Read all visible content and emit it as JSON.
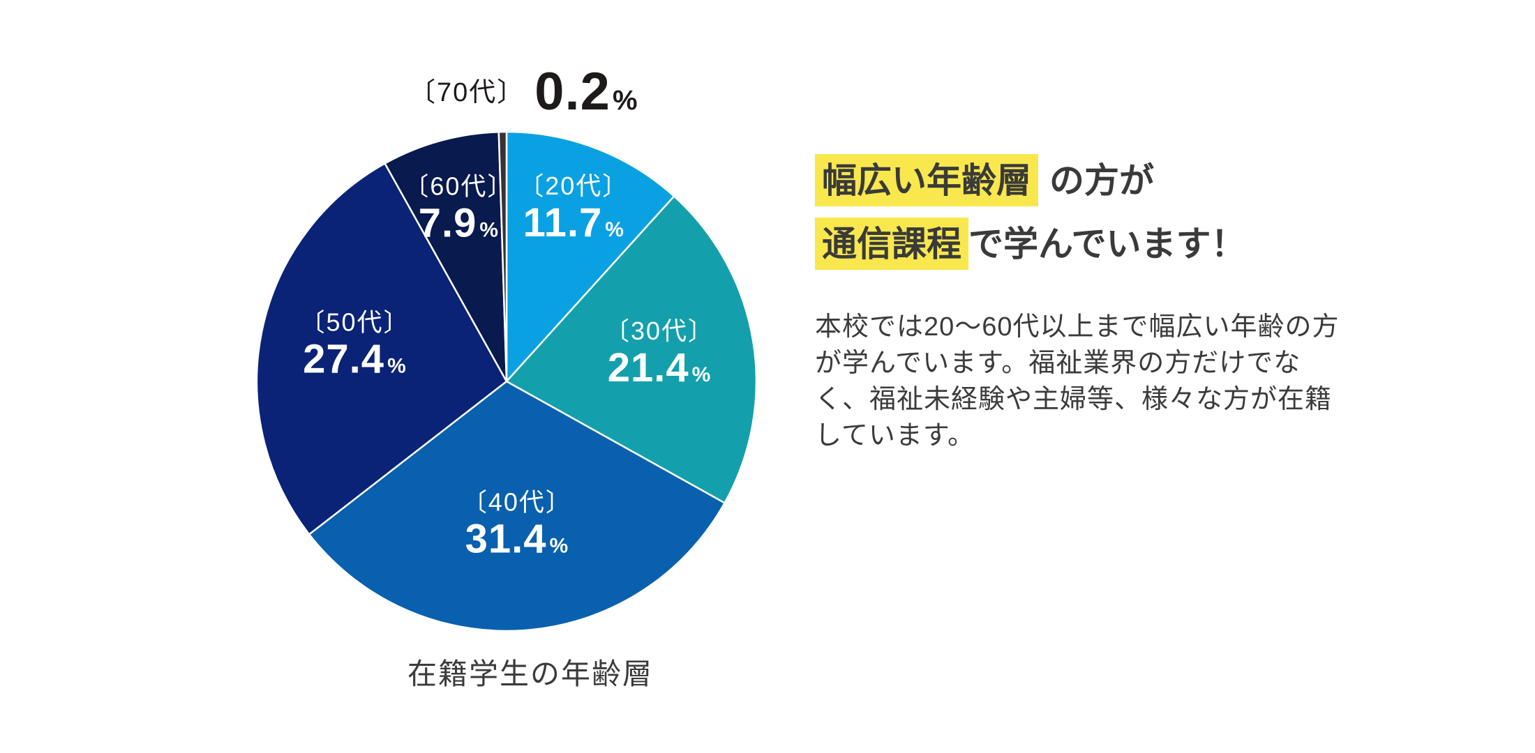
{
  "chart_data": {
    "type": "pie",
    "title": "在籍学生の年齢層",
    "unit": "%",
    "direction": "clockwise",
    "start_angle_deg": 0,
    "labels": [
      "〔20代〕",
      "〔30代〕",
      "〔40代〕",
      "〔50代〕",
      "〔60代〕",
      "〔70代〕"
    ],
    "values": [
      11.7,
      21.4,
      31.4,
      27.4,
      7.9,
      0.2
    ],
    "colors": [
      "#0AA1E2",
      "#13A0AC",
      "#0960AE",
      "#0A2376",
      "#081A4E",
      "#383332"
    ],
    "slice_divider_color": "#FFFFFF",
    "label_color_inside": "#FFFFFF",
    "label_color_outside": "#1E1A19"
  },
  "heading": {
    "line1_highlight": "幅広い年齢層",
    "line1_rest": "の方が",
    "line2_highlight": "通信課程",
    "line2_rest": "で学んでいます！",
    "highlight_color": "#F8E84D",
    "text_color": "#3A3A3A"
  },
  "body": {
    "lines": [
      "本校では20〜60代以上まで幅広い年齢の方",
      "が学んでいます。福祉業界の方だけでな",
      "く、福祉未経験や主婦等、様々な方が在籍",
      "しています。"
    ]
  }
}
